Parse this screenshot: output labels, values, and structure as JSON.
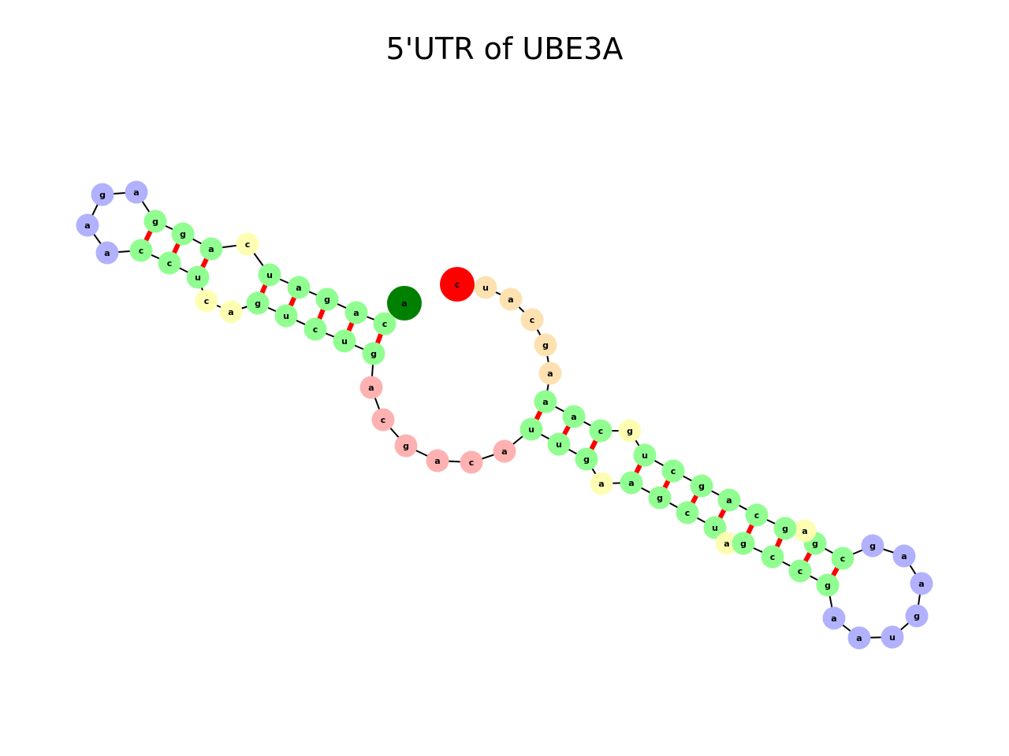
{
  "title": "5'UTR of UBE3A",
  "colors": {
    "stem": "#90fe90",
    "hairpin_loop": "#b1b1fe",
    "interior_loop": "#fefeb3",
    "multiloop": "#feb1b1",
    "five_prime_end": "#008000",
    "three_prime_end": "#fe0000",
    "three_prime_tail": "#fee1b1",
    "backbone": "#000000",
    "base_pair": "#fe0000"
  },
  "nodes": [
    {
      "n": "a",
      "t": "5p"
    },
    {
      "n": "c",
      "t": "stem"
    },
    {
      "n": "a",
      "t": "stem"
    },
    {
      "n": "g",
      "t": "stem"
    },
    {
      "n": "a",
      "t": "stem"
    },
    {
      "n": "u",
      "t": "stem"
    },
    {
      "n": "c",
      "t": "interior"
    },
    {
      "n": "a",
      "t": "stem"
    },
    {
      "n": "g",
      "t": "stem"
    },
    {
      "n": "g",
      "t": "stem"
    },
    {
      "n": "a",
      "t": "hairpin"
    },
    {
      "n": "g",
      "t": "hairpin"
    },
    {
      "n": "a",
      "t": "hairpin"
    },
    {
      "n": "a",
      "t": "hairpin"
    },
    {
      "n": "c",
      "t": "stem"
    },
    {
      "n": "c",
      "t": "stem"
    },
    {
      "n": "u",
      "t": "stem"
    },
    {
      "n": "c",
      "t": "interior"
    },
    {
      "n": "a",
      "t": "interior"
    },
    {
      "n": "g",
      "t": "stem"
    },
    {
      "n": "u",
      "t": "stem"
    },
    {
      "n": "c",
      "t": "stem"
    },
    {
      "n": "u",
      "t": "stem"
    },
    {
      "n": "g",
      "t": "stem"
    },
    {
      "n": "a",
      "t": "multi"
    },
    {
      "n": "c",
      "t": "multi"
    },
    {
      "n": "g",
      "t": "multi"
    },
    {
      "n": "a",
      "t": "multi"
    },
    {
      "n": "c",
      "t": "multi"
    },
    {
      "n": "a",
      "t": "multi"
    },
    {
      "n": "u",
      "t": "stem"
    },
    {
      "n": "u",
      "t": "stem"
    },
    {
      "n": "g",
      "t": "stem"
    },
    {
      "n": "a",
      "t": "interior"
    },
    {
      "n": "a",
      "t": "stem"
    },
    {
      "n": "g",
      "t": "stem"
    },
    {
      "n": "c",
      "t": "stem"
    },
    {
      "n": "u",
      "t": "stem"
    },
    {
      "n": "a",
      "t": "interior"
    },
    {
      "n": "g",
      "t": "stem"
    },
    {
      "n": "c",
      "t": "stem"
    },
    {
      "n": "c",
      "t": "stem"
    },
    {
      "n": "g",
      "t": "stem"
    },
    {
      "n": "a",
      "t": "hairpin"
    },
    {
      "n": "a",
      "t": "hairpin"
    },
    {
      "n": "u",
      "t": "hairpin"
    },
    {
      "n": "g",
      "t": "hairpin"
    },
    {
      "n": "a",
      "t": "hairpin"
    },
    {
      "n": "a",
      "t": "hairpin"
    },
    {
      "n": "g",
      "t": "hairpin"
    },
    {
      "n": "c",
      "t": "stem"
    },
    {
      "n": "g",
      "t": "stem"
    },
    {
      "n": "a",
      "t": "interior"
    },
    {
      "n": "g",
      "t": "stem"
    },
    {
      "n": "c",
      "t": "stem"
    },
    {
      "n": "a",
      "t": "stem"
    },
    {
      "n": "g",
      "t": "stem"
    },
    {
      "n": "c",
      "t": "stem"
    },
    {
      "n": "u",
      "t": "stem"
    },
    {
      "n": "g",
      "t": "interior"
    },
    {
      "n": "c",
      "t": "stem"
    },
    {
      "n": "a",
      "t": "stem"
    },
    {
      "n": "a",
      "t": "stem"
    },
    {
      "n": "a",
      "t": "tail"
    },
    {
      "n": "g",
      "t": "tail"
    },
    {
      "n": "c",
      "t": "tail"
    },
    {
      "n": "a",
      "t": "tail"
    },
    {
      "n": "u",
      "t": "tail"
    },
    {
      "n": "c",
      "t": "3p"
    }
  ],
  "pairs": [
    [
      1,
      23
    ],
    [
      2,
      22
    ],
    [
      3,
      21
    ],
    [
      4,
      20
    ],
    [
      5,
      19
    ],
    [
      7,
      16
    ],
    [
      8,
      15
    ],
    [
      9,
      14
    ],
    [
      30,
      62
    ],
    [
      31,
      61
    ],
    [
      32,
      60
    ],
    [
      34,
      58
    ],
    [
      35,
      57
    ],
    [
      36,
      56
    ],
    [
      37,
      55
    ],
    [
      39,
      54
    ],
    [
      40,
      53
    ],
    [
      41,
      51
    ],
    [
      42,
      50
    ]
  ]
}
